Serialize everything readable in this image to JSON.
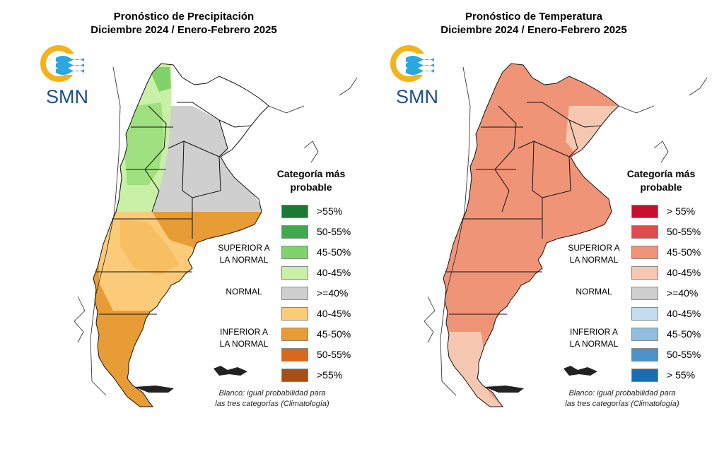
{
  "precip": {
    "title_line1": "Pronóstico de Precipitación",
    "title_line2": "Diciembre 2024 / Enero-Febrero 2025",
    "legend_title_line1": "Categoría más",
    "legend_title_line2": "probable",
    "legend": [
      {
        "label": ">55%",
        "color": "#1a7a32"
      },
      {
        "label": "50-55%",
        "color": "#41a84e"
      },
      {
        "label": "45-50%",
        "color": "#7fd36a"
      },
      {
        "label": "40-45%",
        "color": "#c8f0a6"
      },
      {
        "label": ">=40%",
        "color": "#cfcfcf"
      },
      {
        "label": "40-45%",
        "color": "#fbcb79"
      },
      {
        "label": "45-50%",
        "color": "#e79c36"
      },
      {
        "label": "50-55%",
        "color": "#d9681d"
      },
      {
        "label": ">55%",
        "color": "#a84f18"
      }
    ],
    "superior_line1": "SUPERIOR A",
    "superior_line2": "LA NORMAL",
    "normal": "NORMAL",
    "inferior_line1": "INFERIOR A",
    "inferior_line2": "LA NORMAL",
    "note_line1": "Blanco: igual probabilidad para",
    "note_line2": "las tres categorías (Climatología)"
  },
  "temp": {
    "title_line1": "Pronóstico de Temperatura",
    "title_line2": "Diciembre 2024 / Enero-Febrero 2025",
    "legend_title_line1": "Categoría más",
    "legend_title_line2": "probable",
    "legend": [
      {
        "label": "> 55%",
        "color": "#c8102e"
      },
      {
        "label": "50-55%",
        "color": "#de4c4f"
      },
      {
        "label": "45-50%",
        "color": "#f09478"
      },
      {
        "label": "40-45%",
        "color": "#f6c8b2"
      },
      {
        "label": ">=40%",
        "color": "#cfcfcf"
      },
      {
        "label": "40-45%",
        "color": "#c4dcef"
      },
      {
        "label": "45-50%",
        "color": "#8fbfdf"
      },
      {
        "label": "50-55%",
        "color": "#4d92c9"
      },
      {
        "label": "> 55%",
        "color": "#1a6db3"
      }
    ],
    "superior_line1": "SUPERIOR A",
    "superior_line2": "LA NORMAL",
    "normal": "NORMAL",
    "inferior_line1": "INFERIOR A",
    "inferior_line2": "LA NORMAL",
    "note_line1": "Blanco: igual probabilidad para",
    "note_line2": "las tres categorías (Climatología)"
  },
  "logo": {
    "text": "SMN",
    "ring_color": "#f6b21b",
    "wave_color": "#2aa6e0"
  }
}
